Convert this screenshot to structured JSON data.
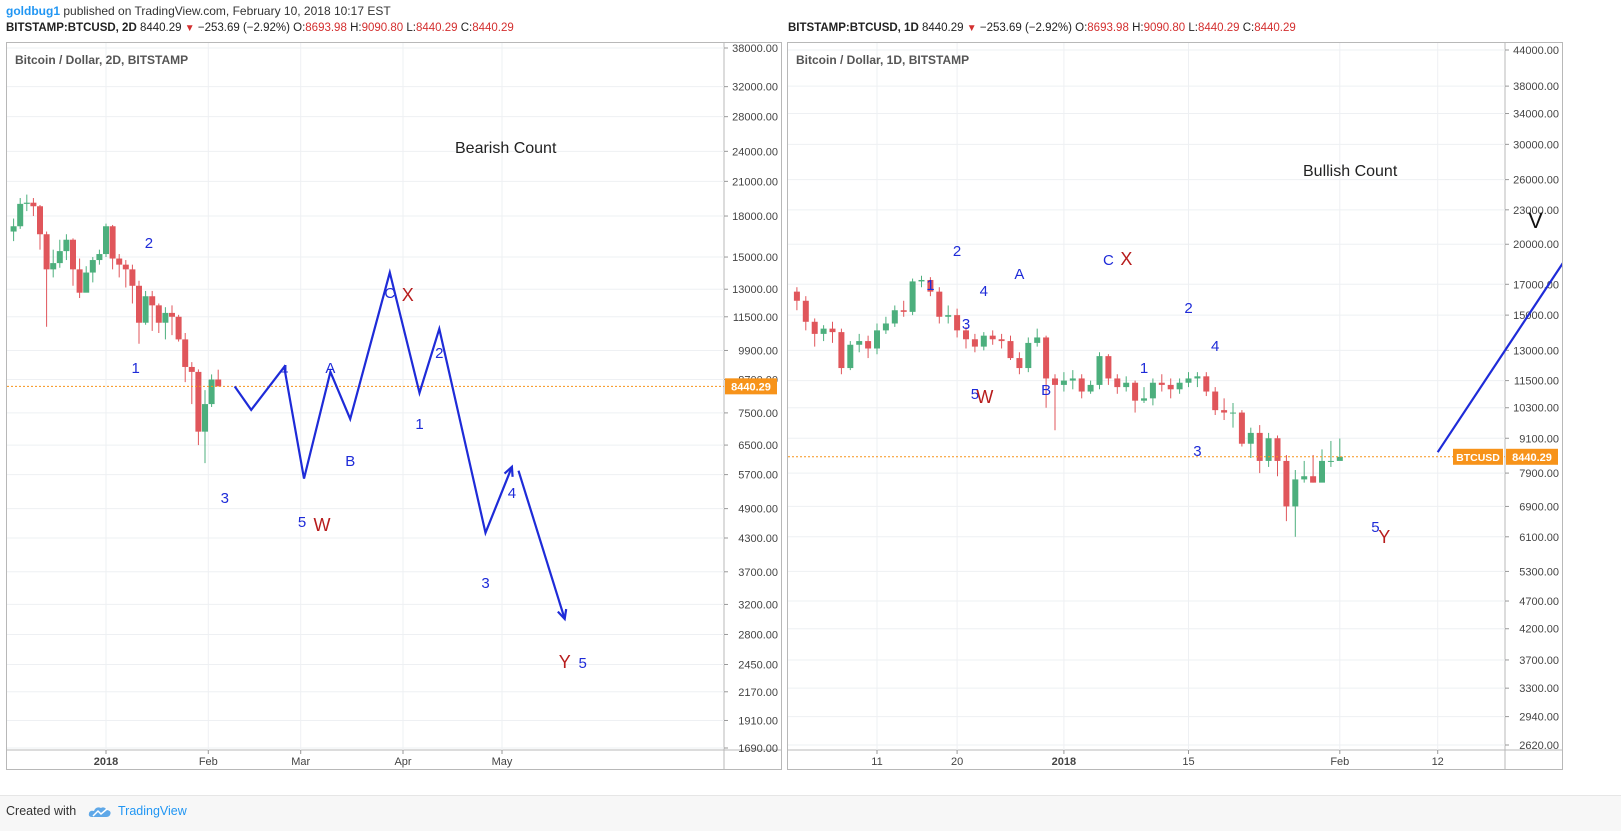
{
  "header": {
    "author": "goldbug1",
    "published": "published on TradingView.com, February 10, 2018 10:17 EST"
  },
  "footer": {
    "created_with": "Created with",
    "brand": "TradingView"
  },
  "colors": {
    "up": "#4CAF7D",
    "down": "#E0565B",
    "wave": "#1E2BD8",
    "count_red": "#B71C1C",
    "price_line": "#F7931A"
  },
  "chart_data": [
    {
      "type": "candlestick",
      "symbol_line": {
        "symbol": "BITSTAMP:BTCUSD, 2D",
        "last": "8440.29",
        "change": "−253.69 (−2.92%)",
        "o": "8693.98",
        "h": "9090.80",
        "l": "8440.29",
        "c": "8440.29"
      },
      "title": "Bitcoin / Dollar, 2D, BITSTAMP",
      "annotation": "Bearish Count",
      "y_scale": "log",
      "y_ticks": [
        "38000.00",
        "32000.00",
        "28000.00",
        "24000.00",
        "21000.00",
        "18000.00",
        "15000.00",
        "13000.00",
        "11500.00",
        "9900.00",
        "8700.00",
        "7500.00",
        "6500.00",
        "5700.00",
        "4900.00",
        "4300.00",
        "3700.00",
        "3200.00",
        "2800.00",
        "2450.00",
        "2170.00",
        "1910.00",
        "1690.00"
      ],
      "y_tick_values": [
        38000,
        32000,
        28000,
        24000,
        21000,
        18000,
        15000,
        13000,
        11500,
        9900,
        8700,
        7500,
        6500,
        5700,
        4900,
        4300,
        3700,
        3200,
        2800,
        2450,
        2170,
        1910,
        1690
      ],
      "x_ticks": [
        "2018",
        "Feb",
        "Mar",
        "Apr",
        "May"
      ],
      "last_price_label": "8440.29",
      "last_price": 8440.29,
      "candles": [
        [
          14500,
          16800,
          16800,
          12800
        ],
        [
          16800,
          17200,
          17800,
          16100
        ],
        [
          17200,
          19000,
          19500,
          17000
        ],
        [
          19000,
          19100,
          19800,
          18400
        ],
        [
          19100,
          18800,
          19500,
          18000
        ],
        [
          18800,
          16600,
          18900,
          15500
        ],
        [
          16600,
          14200,
          16800,
          11000
        ],
        [
          14200,
          14600,
          15500,
          13700
        ],
        [
          14600,
          15400,
          16200,
          14300
        ],
        [
          15400,
          16200,
          16600,
          14800
        ],
        [
          16200,
          14200,
          16300,
          13200
        ],
        [
          14200,
          12800,
          14900,
          12500
        ],
        [
          12800,
          14000,
          14400,
          12900
        ],
        [
          14000,
          14800,
          15000,
          13400
        ],
        [
          14800,
          15200,
          15500,
          14500
        ],
        [
          15200,
          17200,
          17400,
          15000
        ],
        [
          17200,
          14900,
          17300,
          14200
        ],
        [
          14900,
          14500,
          15200,
          13700
        ],
        [
          14500,
          14200,
          14800,
          13100
        ],
        [
          14200,
          13200,
          14500,
          12200
        ],
        [
          13200,
          11200,
          13500,
          10200
        ],
        [
          11200,
          12600,
          12900,
          11100
        ],
        [
          12600,
          12100,
          12900,
          10800
        ],
        [
          12100,
          11200,
          12200,
          10700
        ],
        [
          11200,
          11700,
          12000,
          10400
        ],
        [
          11700,
          11500,
          12100,
          10600
        ],
        [
          11500,
          10400,
          11600,
          10300
        ],
        [
          10400,
          9200,
          10700,
          8600
        ],
        [
          9200,
          9000,
          9400,
          7800
        ],
        [
          9000,
          6900,
          9100,
          6500
        ],
        [
          6900,
          7800,
          8300,
          6000
        ],
        [
          7800,
          8700,
          8900,
          7700
        ],
        [
          8700,
          8440,
          9090,
          8440
        ]
      ],
      "waves": [
        {
          "label": "1",
          "color": "blue",
          "date": "Jan 10, 2018"
        },
        {
          "label": "2",
          "color": "blue",
          "date": "Jan 14, 2018"
        },
        {
          "label": "3",
          "color": "blue",
          "date": "Feb 6, 2018"
        },
        {
          "label": "4",
          "color": "blue",
          "date": "Feb 24, 2018"
        },
        {
          "label": "5",
          "color": "blue",
          "date": "Mar 2, 2018"
        },
        {
          "label": "W",
          "color": "red",
          "date": "Mar 2, 2018"
        },
        {
          "label": "A",
          "color": "blue",
          "date": "Mar 10, 2018"
        },
        {
          "label": "B",
          "color": "blue",
          "date": "Mar 16, 2018"
        },
        {
          "label": "C",
          "color": "blue",
          "date": "Mar 28, 2018"
        },
        {
          "label": "X",
          "color": "red",
          "date": "Mar 28, 2018"
        },
        {
          "label": "1",
          "color": "blue",
          "date": "Apr 6, 2018"
        },
        {
          "label": "2",
          "color": "blue",
          "date": "Apr 12, 2018"
        },
        {
          "label": "3",
          "color": "blue",
          "date": "Apr 26, 2018"
        },
        {
          "label": "4",
          "color": "blue",
          "date": "May 4, 2018"
        },
        {
          "label": "Y",
          "color": "red",
          "date": "May 20, 2018"
        },
        {
          "label": "5",
          "color": "blue",
          "date": "May 20, 2018"
        }
      ],
      "projection_path": [
        [
          "Feb 9, 2018",
          8440
        ],
        [
          "Feb 14, 2018",
          7600
        ],
        [
          "Feb 24, 2018",
          9200
        ],
        [
          "Mar 2, 2018",
          5600
        ],
        [
          "Mar 10, 2018",
          9000
        ],
        [
          "Mar 16, 2018",
          7300
        ],
        [
          "Mar 28, 2018",
          14000
        ],
        [
          "Apr 6, 2018",
          8200
        ],
        [
          "Apr 12, 2018",
          10900
        ],
        [
          "Apr 26, 2018",
          4400
        ],
        [
          "May 4, 2018",
          5900
        ]
      ],
      "projection_path2": [
        [
          "May 6, 2018",
          5800
        ],
        [
          "May 20, 2018",
          3000
        ]
      ]
    },
    {
      "type": "candlestick",
      "symbol_line": {
        "symbol": "BITSTAMP:BTCUSD, 1D",
        "last": "8440.29",
        "change": "−253.69 (−2.92%)",
        "o": "8693.98",
        "h": "9090.80",
        "l": "8440.29",
        "c": "8440.29"
      },
      "title": "Bitcoin / Dollar, 1D, BITSTAMP",
      "annotation": "Bullish Count",
      "y_scale": "log",
      "y_ticks": [
        "44000.00",
        "38000.00",
        "34000.00",
        "30000.00",
        "26000.00",
        "23000.00",
        "20000.00",
        "17000.00",
        "15000.00",
        "13000.00",
        "11500.00",
        "10300.00",
        "9100.00",
        "7900.00",
        "6900.00",
        "6100.00",
        "5300.00",
        "4700.00",
        "4200.00",
        "3700.00",
        "3300.00",
        "2940.00",
        "2620.00"
      ],
      "y_tick_values": [
        44000,
        38000,
        34000,
        30000,
        26000,
        23000,
        20000,
        17000,
        15000,
        13000,
        11500,
        10300,
        9100,
        7900,
        6900,
        6100,
        5300,
        4700,
        4200,
        3700,
        3300,
        2940,
        2620
      ],
      "x_ticks": [
        "11",
        "20",
        "2018",
        "15",
        "Feb",
        "12"
      ],
      "last_price_label": "8440.29",
      "symbol_tag": "BTCUSD",
      "last_price": 8440.29,
      "candles": [
        [
          10900,
          11200,
          11600,
          10600
        ],
        [
          11200,
          11500,
          11900,
          11000
        ],
        [
          11500,
          11800,
          12100,
          11100
        ],
        [
          11800,
          11400,
          12000,
          11000
        ],
        [
          11400,
          11700,
          11900,
          11300
        ],
        [
          11700,
          13500,
          13700,
          11600
        ],
        [
          13500,
          16600,
          16900,
          13300
        ],
        [
          16600,
          16300,
          17100,
          15800
        ],
        [
          16300,
          14700,
          16500,
          13100
        ],
        [
          14700,
          15000,
          15500,
          13400
        ],
        [
          15000,
          16600,
          16800,
          14900
        ],
        [
          16600,
          16800,
          17400,
          16300
        ],
        [
          16800,
          16300,
          17100,
          15900
        ],
        [
          16300,
          15700,
          16500,
          15100
        ],
        [
          15700,
          16200,
          16500,
          15500
        ],
        [
          16200,
          16600,
          16900,
          16000
        ],
        [
          16600,
          19300,
          19400,
          16400
        ],
        [
          19300,
          19100,
          19900,
          18700
        ],
        [
          19100,
          19200,
          19700,
          18800
        ],
        [
          19200,
          18900,
          19300,
          18300
        ],
        [
          18900,
          17500,
          19100,
          16900
        ],
        [
          17500,
          16000,
          17800,
          15700
        ],
        [
          16000,
          15200,
          16200,
          13400
        ],
        [
          15200,
          14000,
          15400,
          11300
        ],
        [
          14000,
          13500,
          14400,
          12200
        ],
        [
          13500,
          14400,
          14700,
          13000
        ],
        [
          14400,
          14000,
          14800,
          13400
        ],
        [
          14000,
          13700,
          14400,
          12800
        ],
        [
          13700,
          14400,
          14600,
          13500
        ],
        [
          14400,
          16500,
          16900,
          14300
        ],
        [
          16500,
          15900,
          16800,
          15300
        ],
        [
          15900,
          14600,
          16200,
          14100
        ],
        [
          14600,
          13900,
          14800,
          13200
        ],
        [
          13900,
          14200,
          14400,
          13500
        ],
        [
          14200,
          14000,
          14600,
          13400
        ],
        [
          14000,
          12100,
          14200,
          11800
        ],
        [
          12100,
          13300,
          13500,
          12000
        ],
        [
          13300,
          13500,
          13900,
          12900
        ],
        [
          13500,
          13100,
          13800,
          12600
        ],
        [
          13100,
          14100,
          14500,
          12800
        ],
        [
          14100,
          14500,
          14900,
          13900
        ],
        [
          14500,
          15300,
          15600,
          14300
        ],
        [
          15300,
          15200,
          15900,
          14900
        ],
        [
          15200,
          17200,
          17400,
          15000
        ],
        [
          17200,
          17300,
          17600,
          16800
        ],
        [
          17300,
          16500,
          17500,
          16200
        ],
        [
          16500,
          14900,
          16800,
          14500
        ],
        [
          14900,
          15000,
          15600,
          14500
        ],
        [
          15000,
          14100,
          15400,
          13700
        ],
        [
          14100,
          13600,
          14300,
          13100
        ],
        [
          13600,
          13200,
          13900,
          12900
        ],
        [
          13200,
          13800,
          14000,
          13000
        ],
        [
          13800,
          13600,
          14100,
          13300
        ],
        [
          13600,
          13500,
          13900,
          13100
        ],
        [
          13500,
          12600,
          13800,
          12500
        ],
        [
          12600,
          12100,
          12900,
          11800
        ],
        [
          12100,
          13400,
          13700,
          11900
        ],
        [
          13400,
          13700,
          14200,
          13200
        ],
        [
          13700,
          11600,
          13800,
          10300
        ],
        [
          11600,
          11300,
          11800,
          9400
        ],
        [
          11300,
          11500,
          11900,
          11000
        ],
        [
          11500,
          11600,
          12000,
          11100
        ],
        [
          11600,
          11000,
          11800,
          10700
        ],
        [
          11000,
          11300,
          11500,
          10900
        ],
        [
          11300,
          12700,
          12900,
          11100
        ],
        [
          12700,
          11600,
          12800,
          11300
        ],
        [
          11600,
          11200,
          11800,
          10900
        ],
        [
          11200,
          11400,
          11700,
          11000
        ],
        [
          11400,
          10600,
          11500,
          10100
        ],
        [
          10600,
          10700,
          11200,
          10500
        ],
        [
          10700,
          11400,
          11600,
          10400
        ],
        [
          11400,
          11300,
          11800,
          11000
        ],
        [
          11300,
          11100,
          11600,
          10700
        ],
        [
          11100,
          11400,
          11600,
          10900
        ],
        [
          11400,
          11600,
          11900,
          11200
        ],
        [
          11600,
          11700,
          11900,
          11200
        ],
        [
          11700,
          11000,
          11900,
          10800
        ],
        [
          11000,
          10200,
          11200,
          10000
        ],
        [
          10200,
          10100,
          10700,
          9800
        ],
        [
          10100,
          10100,
          10500,
          9500
        ],
        [
          10100,
          8900,
          10200,
          8800
        ],
        [
          8900,
          9300,
          9500,
          8400
        ],
        [
          9300,
          8300,
          9600,
          7900
        ],
        [
          8300,
          9100,
          9300,
          8100
        ],
        [
          9100,
          8300,
          9200,
          7800
        ],
        [
          8300,
          6900,
          8500,
          6500
        ],
        [
          6900,
          7700,
          8000,
          6100
        ],
        [
          7700,
          7800,
          8300,
          7600
        ],
        [
          7800,
          7600,
          8500,
          7600
        ],
        [
          7600,
          8300,
          8700,
          7700
        ],
        [
          8300,
          8300,
          9000,
          8100
        ],
        [
          8300,
          8440,
          9090,
          8440
        ]
      ],
      "waves": [
        {
          "label": "1",
          "color": "blue",
          "date": "Dec 17, 2017"
        },
        {
          "label": "2",
          "color": "blue",
          "date": "Dec 20, 2017"
        },
        {
          "label": "3",
          "color": "blue",
          "date": "Dec 21, 2017"
        },
        {
          "label": "4",
          "color": "blue",
          "date": "Dec 23, 2017"
        },
        {
          "label": "5",
          "color": "blue",
          "date": "Dec 22, 2017"
        },
        {
          "label": "W",
          "color": "red",
          "date": "Dec 22, 2017"
        },
        {
          "label": "A",
          "color": "blue",
          "date": "Dec 27, 2017"
        },
        {
          "label": "B",
          "color": "blue",
          "date": "Dec 30, 2017"
        },
        {
          "label": "C",
          "color": "blue",
          "date": "Jan 6, 2018"
        },
        {
          "label": "X",
          "color": "red",
          "date": "Jan 6, 2018"
        },
        {
          "label": "1",
          "color": "blue",
          "date": "Jan 10, 2018"
        },
        {
          "label": "2",
          "color": "blue",
          "date": "Jan 15, 2018"
        },
        {
          "label": "3",
          "color": "blue",
          "date": "Jan 16, 2018"
        },
        {
          "label": "4",
          "color": "blue",
          "date": "Jan 18, 2018"
        },
        {
          "label": "5",
          "color": "blue",
          "date": "Feb 5, 2018"
        },
        {
          "label": "Y",
          "color": "red",
          "date": "Feb 6, 2018"
        },
        {
          "label": "V",
          "color": "black",
          "date": "Feb 23, 2018"
        }
      ],
      "projection_path": [
        [
          "Feb 12, 2018",
          8600
        ],
        [
          "Feb 27, 2018",
          19500
        ]
      ]
    }
  ]
}
